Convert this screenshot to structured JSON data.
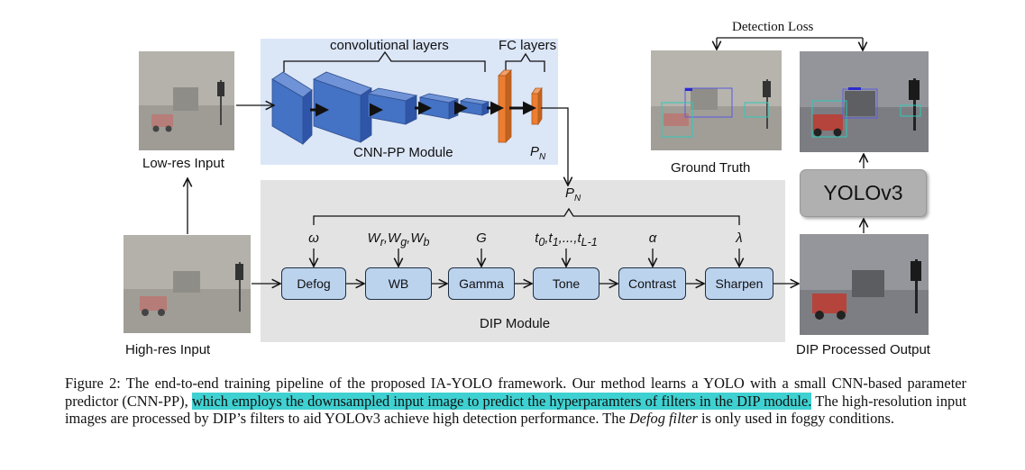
{
  "figure": {
    "low_res_input_label": "Low-res Input",
    "high_res_input_label": "High-res Input",
    "cnn_pp": {
      "conv_layers_label": "convolutional layers",
      "fc_layers_label": "FC layers",
      "module_label": "CNN-PP Module",
      "output_param_main": "P",
      "output_param_sub": "N"
    },
    "dip": {
      "input_param_main": "P",
      "input_param_sub": "N",
      "module_label": "DIP Module",
      "filters": [
        {
          "label": "Defog",
          "param_html": "ω"
        },
        {
          "label": "WB",
          "param_html": "W<sub>r</sub>,W<sub>g</sub>,W<sub>b</sub>"
        },
        {
          "label": "Gamma",
          "param_html": "G"
        },
        {
          "label": "Tone",
          "param_html": "t<sub>0</sub>,t<sub>1</sub>,...,t<sub>L-1</sub>"
        },
        {
          "label": "Contrast",
          "param_html": "α"
        },
        {
          "label": "Sharpen",
          "param_html": "λ"
        }
      ]
    },
    "detection_loss_label": "Detection Loss",
    "ground_truth_label": "Ground Truth",
    "yolo_label": "YOLOv3",
    "dip_output_label": "DIP Processed Output",
    "colors": {
      "cnn_pp_background": "#dbe6f7",
      "dip_background": "#e3e3e3",
      "conv_block": "#4472c4",
      "fc_block": "#ed7d31",
      "filter_box": "#bcd3ee",
      "yolo_box": "#b0b0b0",
      "highlight": "#3fd1d1"
    }
  },
  "caption": {
    "part1": "Figure 2: The end-to-end training pipeline of the proposed IA-YOLO framework. Our method learns a YOLO with a small CNN-based parameter predictor (CNN-PP), ",
    "highlighted": "which employs the downsampled input image to predict the hyperparamters of filters in the DIP module.",
    "part2": " The high-resolution input images are processed by DIP’s filters to aid YOLOv3 achieve high detection performance. The ",
    "italic": "Defog filter",
    "part3": " is only used in foggy conditions."
  }
}
